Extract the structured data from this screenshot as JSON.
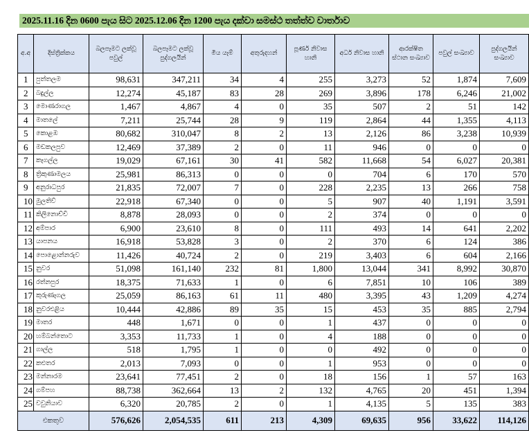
{
  "title": "2025.11.16 දින 0600 පැය සිට 2025.12.06 දින 1200 පැය දක්වා සමස්ථ තත්ත්ව වාර්තාව",
  "headers": [
    "අ.අ",
    "දිස්ත්‍රික්කය",
    "බලපෑමට ලක්වූ පවුල්",
    "බලපෑමට ලක්වූ පුද්ගලයින්",
    "මිය යෑම්",
    "අතුරුදහන්",
    "පූර්ණ නිවාස හානි",
    "අර්ධ නිවාස හානි",
    "ආරක්ෂිත ස්ථාන සංඛ්‍යාව",
    "පවුල් සංඛ්‍යාව",
    "පුද්ගලයින් සංඛ්‍යාව"
  ],
  "rows": [
    [
      "1",
      "පුත්තලම",
      "98,631",
      "347,211",
      "34",
      "4",
      "255",
      "3,273",
      "52",
      "1,874",
      "7,609"
    ],
    [
      "2",
      "බදුල්ල",
      "12,274",
      "45,187",
      "83",
      "28",
      "269",
      "3,896",
      "178",
      "6,246",
      "21,002"
    ],
    [
      "3",
      "මොණරාගල",
      "1,467",
      "4,867",
      "4",
      "0",
      "35",
      "507",
      "2",
      "51",
      "142"
    ],
    [
      "4",
      "මාතලේ",
      "7,211",
      "25,744",
      "28",
      "9",
      "119",
      "2,864",
      "44",
      "1,355",
      "4,113"
    ],
    [
      "5",
      "කොළඹ",
      "80,682",
      "310,047",
      "8",
      "2",
      "13",
      "2,126",
      "86",
      "3,238",
      "10,939"
    ],
    [
      "6",
      "මඩකලපුව",
      "12,469",
      "37,389",
      "2",
      "0",
      "11",
      "946",
      "0",
      "0",
      "0"
    ],
    [
      "7",
      "කෑගල්ල",
      "19,029",
      "67,161",
      "30",
      "41",
      "582",
      "11,668",
      "54",
      "6,027",
      "20,381"
    ],
    [
      "8",
      "ත්‍රිකුණාමලය",
      "25,981",
      "86,313",
      "0",
      "0",
      "0",
      "704",
      "6",
      "170",
      "570"
    ],
    [
      "9",
      "අනුරාධපුර",
      "21,835",
      "72,007",
      "7",
      "0",
      "228",
      "2,235",
      "13",
      "266",
      "758"
    ],
    [
      "10",
      "මුලතිව්",
      "22,918",
      "67,340",
      "0",
      "0",
      "5",
      "907",
      "40",
      "1,191",
      "3,591"
    ],
    [
      "11",
      "කිලිනොච්චි",
      "8,878",
      "28,093",
      "0",
      "0",
      "2",
      "374",
      "0",
      "0",
      "0"
    ],
    [
      "12",
      "අම්පාර",
      "6,900",
      "23,610",
      "8",
      "0",
      "111",
      "493",
      "14",
      "641",
      "2,202"
    ],
    [
      "13",
      "යාපනය",
      "16,918",
      "53,828",
      "3",
      "0",
      "2",
      "370",
      "6",
      "124",
      "386"
    ],
    [
      "14",
      "පොළොන්නරුව",
      "11,426",
      "40,724",
      "2",
      "0",
      "219",
      "3,403",
      "6",
      "604",
      "2,166"
    ],
    [
      "15",
      "නුවර",
      "51,098",
      "161,140",
      "232",
      "81",
      "1,800",
      "13,044",
      "341",
      "8,992",
      "30,870"
    ],
    [
      "16",
      "රත්නපුර",
      "18,375",
      "71,633",
      "1",
      "0",
      "6",
      "7,851",
      "10",
      "106",
      "389"
    ],
    [
      "17",
      "කුරුණෑගල",
      "25,059",
      "86,163",
      "61",
      "11",
      "480",
      "3,395",
      "43",
      "1,209",
      "4,274"
    ],
    [
      "18",
      "නුවරඑළිය",
      "10,444",
      "42,886",
      "89",
      "35",
      "15",
      "453",
      "35",
      "885",
      "2,794"
    ],
    [
      "19",
      "මාතර",
      "448",
      "1,671",
      "0",
      "0",
      "1",
      "437",
      "0",
      "0",
      "0"
    ],
    [
      "20",
      "හම්බන්තොට",
      "3,353",
      "11,733",
      "1",
      "0",
      "4",
      "188",
      "0",
      "0",
      "0"
    ],
    [
      "21",
      "ගාල්ල",
      "518",
      "1,795",
      "1",
      "0",
      "0",
      "492",
      "0",
      "0",
      "0"
    ],
    [
      "22",
      "කළුතර",
      "2,013",
      "7,093",
      "0",
      "0",
      "1",
      "953",
      "0",
      "0",
      "0"
    ],
    [
      "23",
      "මන්නාරම",
      "23,641",
      "77,451",
      "2",
      "0",
      "18",
      "156",
      "1",
      "57",
      "163"
    ],
    [
      "24",
      "ගම්පහ",
      "88,738",
      "362,664",
      "13",
      "2",
      "132",
      "4,765",
      "20",
      "451",
      "1,394"
    ],
    [
      "25",
      "වවුනියාව",
      "6,320",
      "20,785",
      "2",
      "0",
      "1",
      "4,135",
      "5",
      "135",
      "383"
    ]
  ],
  "totals": [
    "එකතුව",
    "576,626",
    "2,054,535",
    "611",
    "213",
    "4,309",
    "69,635",
    "956",
    "33,622",
    "114,126"
  ],
  "colors": {
    "title_bg": "#a9d08e",
    "header_bg": "#dae3f3"
  }
}
